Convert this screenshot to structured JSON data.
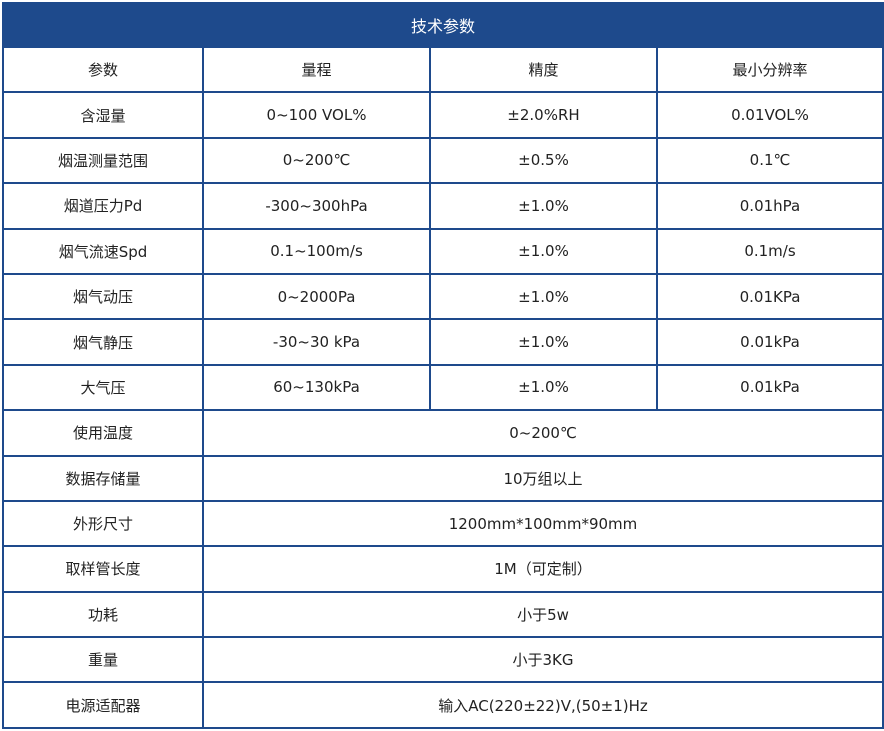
{
  "title": "技术参数",
  "header": [
    "参数",
    "量程",
    "精度",
    "最小分辨率"
  ],
  "rows": [
    [
      "含湿量",
      "0~100 VOL%",
      "±2.0%RH",
      "0.01VOL%"
    ],
    [
      "烟温测量范围",
      "0~200℃",
      "±0.5%",
      "0.1℃"
    ],
    [
      "烟道压力Pd",
      "-300~300hPa",
      "±1.0%",
      "0.01hPa"
    ],
    [
      "烟气流速Spd",
      "0.1~100m/s",
      "±1.0%",
      "0.1m/s"
    ],
    [
      "烟气动压",
      "0~2000Pa",
      "±1.0%",
      "0.01KPa"
    ],
    [
      "烟气静压",
      "-30~30 kPa",
      "±1.0%",
      "0.01kPa"
    ],
    [
      "大气压",
      "60~130kPa",
      "±1.0%",
      "0.01kPa"
    ]
  ],
  "merged_rows": [
    [
      "使用温度",
      "0~200℃"
    ],
    [
      "数据存储量",
      "10万组以上"
    ],
    [
      "外形尺寸",
      "1200mm*100mm*90mm"
    ],
    [
      "取样管长度",
      "1M（可定制）"
    ],
    [
      "功耗",
      "小于5w"
    ],
    [
      "重量",
      "小于3KG"
    ],
    [
      "电源适配器",
      "输入AC(220±22)V,(50±1)Hz"
    ]
  ],
  "colors": {
    "border": "#1e4a8c",
    "header_bg": "#1e4a8c",
    "header_text": "#ffffff",
    "text": "#222222"
  }
}
